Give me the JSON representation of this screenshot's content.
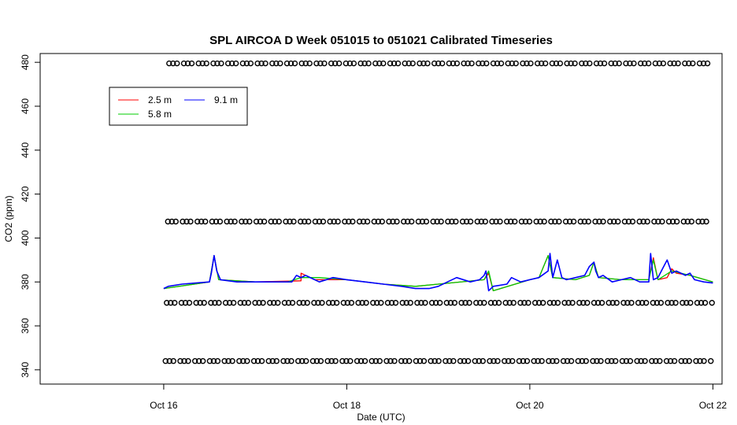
{
  "chart_data": {
    "type": "line",
    "title": "SPL AIRCOA D  Week 051015 to 051021  Calibrated Timeseries",
    "xlabel": "Date (UTC)",
    "ylabel": "CO2 (ppm)",
    "xlim": [
      -1.35,
      6.1
    ],
    "ylim": [
      333.5,
      484
    ],
    "xticks": [
      {
        "value": 0,
        "label": "Oct 16"
      },
      {
        "value": 2,
        "label": "Oct 18"
      },
      {
        "value": 4,
        "label": "Oct 20"
      },
      {
        "value": 6,
        "label": "Oct 22"
      }
    ],
    "yticks": [
      340,
      360,
      380,
      400,
      420,
      440,
      460,
      480
    ],
    "legend": {
      "placement": "top-left",
      "entries": [
        {
          "name": "2.5 m",
          "color": "#ff0000"
        },
        {
          "name": "5.8 m",
          "color": "#00cd00"
        },
        {
          "name": "9.1 m",
          "color": "#0000ff"
        }
      ]
    },
    "series": [
      {
        "name": "2.5 m",
        "color": "#ff0000",
        "x": [
          0,
          0.5,
          0.55,
          0.6,
          1,
          1.5,
          1.5,
          1.65,
          2,
          2.4,
          2.75,
          3,
          3.5,
          3.55,
          3.6,
          4,
          4.1,
          4.2,
          4.25,
          4.5,
          4.65,
          4.7,
          4.75,
          5,
          5.3,
          5.35,
          5.4,
          5.5,
          5.55,
          5.6,
          5.75,
          6
        ],
        "y": [
          377,
          380,
          392,
          381,
          380,
          380.5,
          384,
          381,
          381,
          379,
          378,
          379,
          381,
          384,
          376,
          381,
          382,
          392,
          382,
          381,
          383,
          389,
          382,
          381,
          381,
          391,
          381,
          382,
          386,
          384,
          383,
          380
        ]
      },
      {
        "name": "5.8 m",
        "color": "#00cd00",
        "x": [
          0,
          0.5,
          0.55,
          0.6,
          1,
          1.35,
          1.5,
          1.7,
          2,
          2.4,
          2.75,
          3,
          3.5,
          3.55,
          3.6,
          4,
          4.1,
          4.2,
          4.25,
          4.5,
          4.65,
          4.7,
          4.75,
          5,
          5.3,
          5.35,
          5.4,
          5.55,
          5.75,
          6
        ],
        "y": [
          377,
          380,
          392,
          381,
          380,
          380,
          382,
          382,
          381,
          379,
          378,
          379,
          381,
          385,
          376,
          381,
          382,
          392,
          382,
          381,
          383,
          389,
          382,
          381,
          381,
          390,
          381,
          385,
          383,
          380
        ]
      },
      {
        "name": "9.1 m",
        "color": "#0000ff",
        "x": [
          0,
          0.05,
          0.2,
          0.5,
          0.52,
          0.55,
          0.58,
          0.62,
          0.8,
          1,
          1.2,
          1.4,
          1.45,
          1.5,
          1.55,
          1.7,
          1.85,
          2,
          2.2,
          2.4,
          2.6,
          2.75,
          2.9,
          3.0,
          3.1,
          3.2,
          3.35,
          3.45,
          3.5,
          3.52,
          3.55,
          3.6,
          3.75,
          3.8,
          3.9,
          4,
          4.1,
          4.2,
          4.22,
          4.25,
          4.3,
          4.35,
          4.4,
          4.5,
          4.6,
          4.65,
          4.7,
          4.72,
          4.75,
          4.8,
          4.9,
          5,
          5.1,
          5.2,
          5.3,
          5.32,
          5.35,
          5.4,
          5.45,
          5.5,
          5.55,
          5.6,
          5.7,
          5.75,
          5.8,
          5.9,
          6
        ],
        "y": [
          377,
          378,
          379,
          380,
          384,
          392,
          385,
          381,
          380,
          380,
          380,
          380,
          383,
          382,
          383,
          380,
          382,
          381,
          380,
          379,
          378,
          377,
          377,
          378,
          380,
          382,
          380,
          381,
          383,
          385,
          376,
          378,
          379,
          382,
          380,
          381,
          382,
          385,
          393,
          382,
          390,
          382,
          381,
          382,
          383,
          387,
          389,
          385,
          382,
          383,
          380,
          381,
          382,
          380,
          380,
          393,
          381,
          382,
          386,
          390,
          384,
          385,
          383,
          384,
          381,
          380,
          379.5
        ]
      }
    ],
    "calibration_markers": {
      "symbol": "circle",
      "y_levels": [
        344,
        370.5,
        407.5,
        479.5
      ],
      "x_range": [
        0,
        6
      ]
    }
  }
}
